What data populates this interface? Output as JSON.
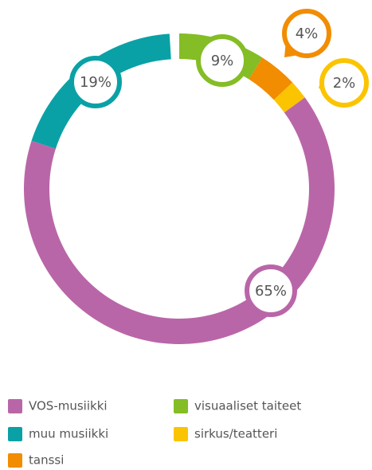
{
  "chart_data": {
    "type": "donut",
    "categories": [
      "VOS-musiikki",
      "muu musiikki",
      "tanssi",
      "visuaaliset taiteet",
      "sirkus/teatteri"
    ],
    "values": [
      65,
      19,
      4,
      9,
      2
    ],
    "value_labels": [
      "65%",
      "19%",
      "4%",
      "9%",
      "2%"
    ],
    "colors": [
      "#b966a8",
      "#0aa1a6",
      "#f28c00",
      "#84bd25",
      "#fbc400"
    ],
    "legend": "bottom"
  }
}
